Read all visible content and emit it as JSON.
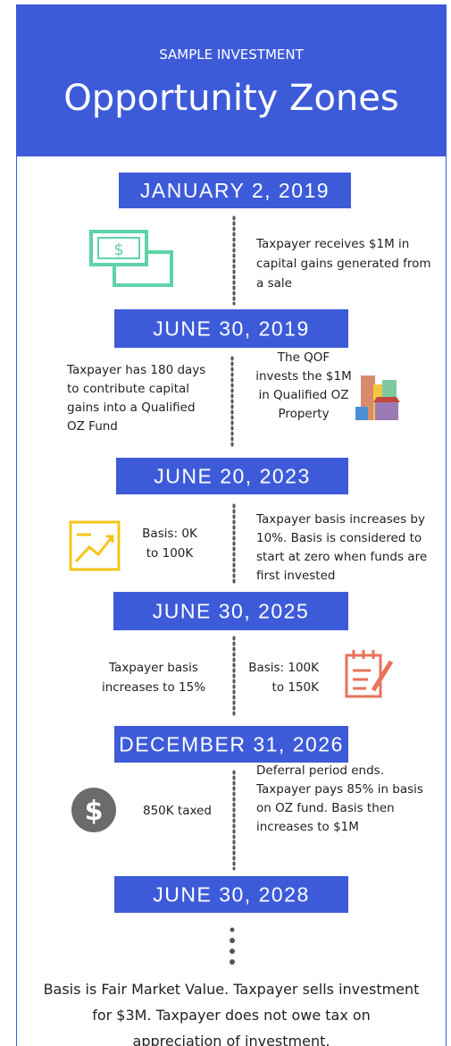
{
  "header": {
    "kicker": "SAMPLE INVESTMENT",
    "title": "Opportunity Zones"
  },
  "timeline": [
    {
      "date": "JANUARY 2, 2019",
      "right": [
        "Taxpayer receives $1M in",
        "capital gains generated from",
        "a sale"
      ]
    },
    {
      "date": "JUNE 30, 2019",
      "left": [
        "Taxpayer has 180 days",
        "to contribute capital",
        "gains into a Qualified",
        "OZ Fund"
      ],
      "right": [
        "The QOF",
        "invests the $1M",
        "in Qualified OZ",
        "Property"
      ]
    },
    {
      "date": "JUNE 20, 2023",
      "left": [
        "Basis: 0K",
        "to 100K"
      ],
      "right": [
        "Taxpayer basis increases by",
        "10%. Basis is considered to",
        "start at zero when funds are",
        "first invested"
      ]
    },
    {
      "date": "JUNE 30, 2025",
      "left": [
        "Taxpayer basis",
        "increases to 15%"
      ],
      "right": [
        "Basis: 100K",
        "to 150K"
      ]
    },
    {
      "date": "DECEMBER 31, 2026",
      "left": [
        "850K taxed"
      ],
      "right": [
        "Deferral period ends.",
        "Taxpayer pays 85% in basis",
        "on OZ fund. Basis then",
        "increases to $1M"
      ]
    },
    {
      "date": "JUNE 30, 2028"
    }
  ],
  "conclusion": [
    "Basis is Fair Market Value. Taxpayer sells investment",
    "for $3M. Taxpayer does not owe tax on",
    "appreciation of investment."
  ]
}
